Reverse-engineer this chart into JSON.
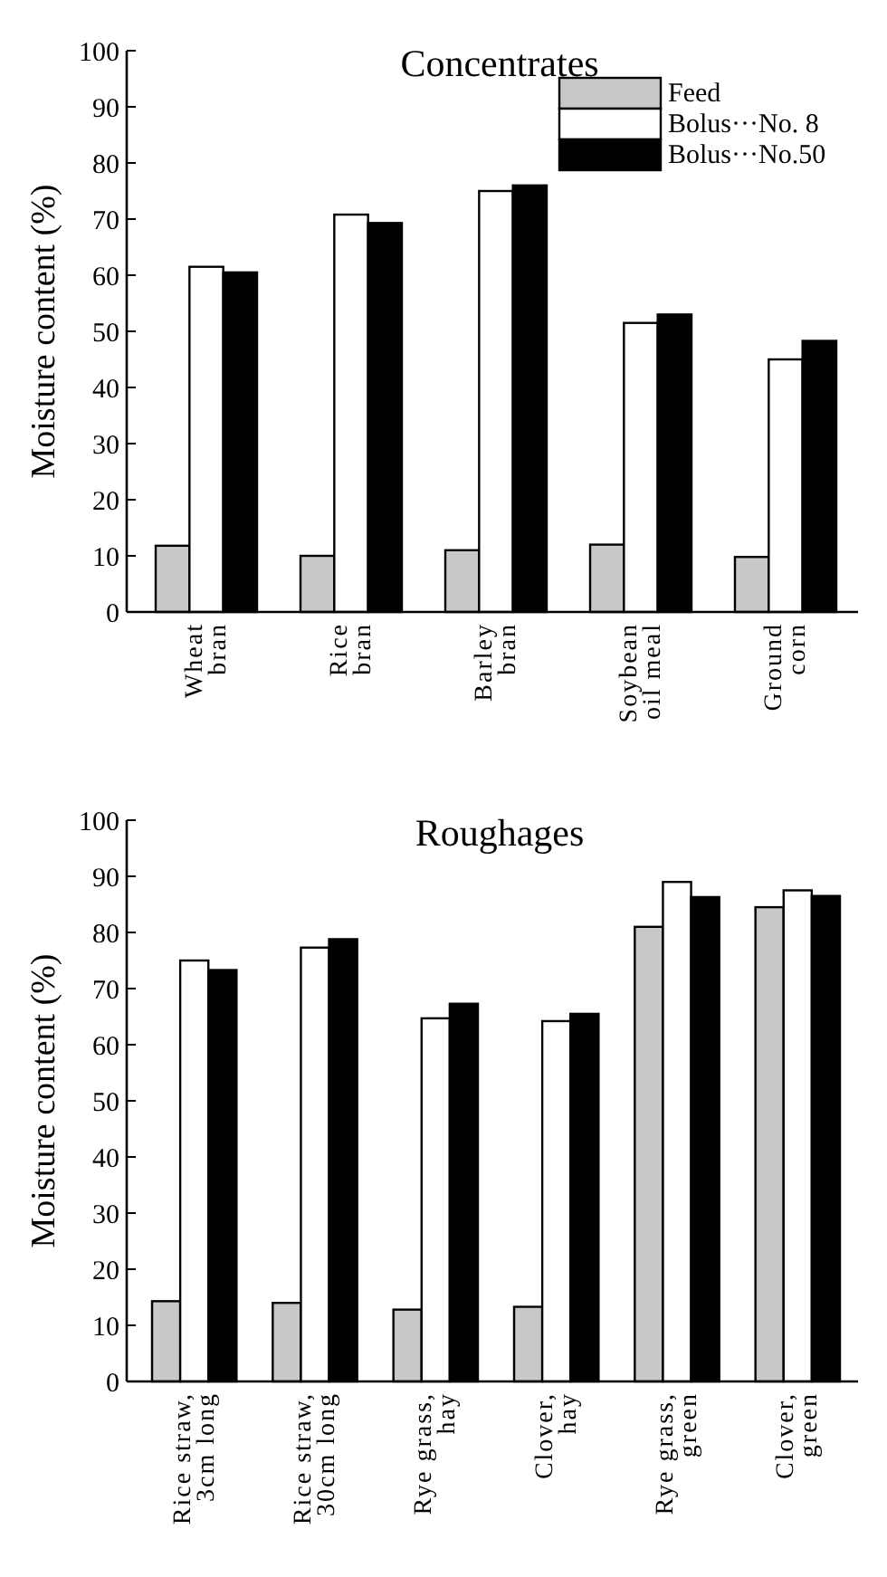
{
  "chart_data": [
    {
      "type": "bar",
      "title": "Concentrates",
      "ylabel": "Moisture content (%)",
      "categories": [
        "Wheat\nbran",
        "Rice\nbran",
        "Barley\nbran",
        "Soybean\noil meal",
        "Ground\ncorn"
      ],
      "ylim": [
        0,
        100
      ],
      "yticks": [
        0,
        10,
        20,
        30,
        40,
        50,
        60,
        70,
        80,
        90,
        100
      ],
      "grid": false,
      "legend": "top right",
      "series": [
        {
          "name": "Feed",
          "color": "#c8c8c8",
          "values": [
            11.8,
            10,
            11,
            12,
            9.8
          ]
        },
        {
          "name": "Bolus···No. 8",
          "color": "#ffffff",
          "values": [
            61.5,
            70.8,
            75,
            51.5,
            45
          ]
        },
        {
          "name": "Bolus···No.50",
          "color": "#000000",
          "values": [
            60.5,
            69.3,
            76,
            53,
            48.3
          ]
        }
      ]
    },
    {
      "type": "bar",
      "title": "Roughages",
      "ylabel": "Moisture content (%)",
      "categories": [
        "Rice straw,\n3cm long",
        "Rice straw,\n30cm long",
        "Rye grass,\nhay",
        "Clover,\nhay",
        "Rye grass,\ngreen",
        "Clover,\ngreen"
      ],
      "ylim": [
        0,
        100
      ],
      "yticks": [
        0,
        10,
        20,
        30,
        40,
        50,
        60,
        70,
        80,
        90,
        100
      ],
      "grid": false,
      "legend": false,
      "series": [
        {
          "color": "#c8c8c8",
          "values": [
            14.3,
            14,
            12.8,
            13.3,
            81,
            84.5
          ]
        },
        {
          "color": "#ffffff",
          "values": [
            75,
            77.3,
            64.7,
            64.2,
            89,
            87.5
          ]
        },
        {
          "color": "#000000",
          "values": [
            73.3,
            78.8,
            67.3,
            65.5,
            86.3,
            86.5
          ]
        }
      ]
    }
  ]
}
